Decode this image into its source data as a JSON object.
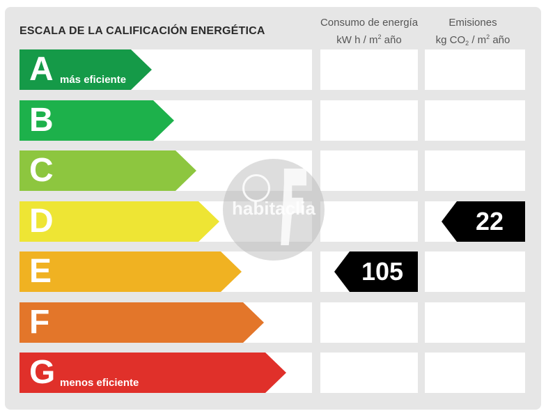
{
  "title": "ESCALA DE LA CALIFICACIÓN ENERGÉTICA",
  "columns": {
    "energy": {
      "line1": "Consumo de energía",
      "line2_a": "kW h  / m",
      "line2_sup": "2",
      "line2_b": " año"
    },
    "emissions": {
      "line1": "Emisiones",
      "line2_a": "kg CO",
      "line2_sub": "2",
      "line2_b": "  / m",
      "line2_sup": "2",
      "line2_c": " año"
    }
  },
  "ratings": [
    {
      "letter": "A",
      "label": "más eficiente",
      "color": "#159a48"
    },
    {
      "letter": "B",
      "label": "",
      "color": "#1db14b"
    },
    {
      "letter": "C",
      "label": "",
      "color": "#8dc63f"
    },
    {
      "letter": "D",
      "label": "",
      "color": "#eee534"
    },
    {
      "letter": "E",
      "label": "",
      "color": "#f0b222"
    },
    {
      "letter": "F",
      "label": "",
      "color": "#e3762a"
    },
    {
      "letter": "G",
      "label": "menos eficiente",
      "color": "#e0302a"
    }
  ],
  "values": {
    "energy": {
      "rating": "E",
      "value": "105"
    },
    "emissions": {
      "rating": "D",
      "value": "22"
    }
  },
  "watermark": {
    "text": "habitaclia"
  }
}
